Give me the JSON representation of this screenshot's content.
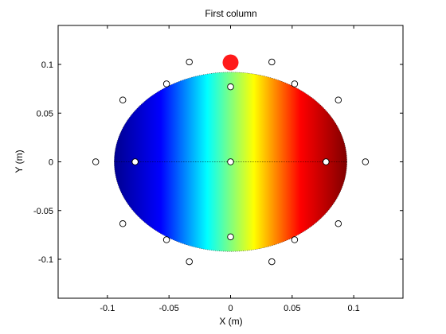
{
  "chart_data": {
    "type": "scatter",
    "title": "First column",
    "xlabel": "X (m)",
    "ylabel": "Y (m)",
    "xlim": [
      -0.14,
      0.14
    ],
    "ylim": [
      -0.14,
      0.14
    ],
    "xticks": [
      -0.1,
      -0.05,
      0,
      0.05,
      0.1
    ],
    "yticks": [
      -0.1,
      -0.05,
      0,
      0.05,
      0.1
    ],
    "xtick_labels": [
      "-0.1",
      "-0.05",
      "0",
      "0.05",
      "0.1"
    ],
    "ytick_labels": [
      "-0.1",
      "-0.05",
      "0",
      "0.05",
      "0.1"
    ],
    "grid": false,
    "colormap": "jet",
    "color_gradient": [
      "#00008f",
      "#0000ff",
      "#00ffff",
      "#ffff00",
      "#ff0000",
      "#800000"
    ],
    "field_region": {
      "shape": "ellipse",
      "center": [
        0,
        0
      ],
      "semi_axis_x": 0.0945,
      "semi_axis_y": 0.092,
      "gradient_direction": "x"
    },
    "reference_line": {
      "y": 0,
      "style": "dotted",
      "x_range": [
        -0.0945,
        0.0945
      ]
    },
    "electrodes": [
      {
        "x": -0.0335,
        "y": 0.1025
      },
      {
        "x": 0.0335,
        "y": 0.1025
      },
      {
        "x": -0.052,
        "y": 0.08
      },
      {
        "x": 0.0,
        "y": 0.077
      },
      {
        "x": 0.052,
        "y": 0.08
      },
      {
        "x": -0.0875,
        "y": 0.0635
      },
      {
        "x": 0.0875,
        "y": 0.0635
      },
      {
        "x": -0.1095,
        "y": 0.0
      },
      {
        "x": -0.0775,
        "y": 0.0
      },
      {
        "x": 0.0,
        "y": 0.0
      },
      {
        "x": 0.0775,
        "y": 0.0
      },
      {
        "x": 0.1095,
        "y": 0.0
      },
      {
        "x": -0.0875,
        "y": -0.0635
      },
      {
        "x": 0.0875,
        "y": -0.0635
      },
      {
        "x": -0.052,
        "y": -0.08
      },
      {
        "x": 0.0,
        "y": -0.077
      },
      {
        "x": 0.052,
        "y": -0.08
      },
      {
        "x": -0.0335,
        "y": -0.1025
      },
      {
        "x": 0.0335,
        "y": -0.1025
      }
    ],
    "electrode_color": "#ffffff",
    "highlight_point": {
      "x": 0.0,
      "y": 0.102
    },
    "highlight_color": "#ff1a1a"
  }
}
